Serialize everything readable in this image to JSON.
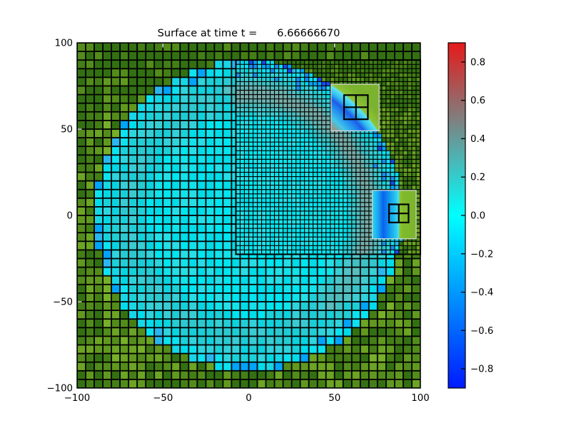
{
  "chart_data": {
    "type": "heatmap",
    "title": "Surface at time t =      6.66666670",
    "time_value": "6.66666670",
    "axes": {
      "xlim": [
        -100,
        100
      ],
      "ylim": [
        -100,
        100
      ],
      "xticks": [
        -100,
        -50,
        0,
        50,
        100
      ],
      "xtick_labels": [
        "−100",
        "−50",
        "0",
        "50",
        "100"
      ],
      "yticks": [
        100,
        50,
        0,
        -50,
        -100
      ],
      "ytick_labels": [
        "100",
        "50",
        "0",
        "−50",
        "−100"
      ],
      "aspect": "equal",
      "grid": "AMR mesh lines"
    },
    "colorbar": {
      "position": "right",
      "vmin": -0.9,
      "vmax": 0.9,
      "ticks": [
        0.8,
        0.6,
        0.4,
        0.2,
        0.0,
        -0.2,
        -0.4,
        -0.6,
        -0.8
      ],
      "tick_labels": [
        "0.8",
        "0.6",
        "0.4",
        "0.2",
        "0.0",
        "−0.2",
        "−0.4",
        "−0.6",
        "−0.8"
      ],
      "cmap_stops": [
        [
          0.9,
          "#e61a1a"
        ],
        [
          0.6,
          "#996666"
        ],
        [
          0.3,
          "#4db3b3"
        ],
        [
          0.0,
          "#00ffff"
        ],
        [
          -0.3,
          "#00b3ff"
        ],
        [
          -0.6,
          "#0066ff"
        ],
        [
          -0.9,
          "#001aff"
        ]
      ]
    },
    "mesh": {
      "coarse_cell_size": 5,
      "fine_cell_size": 2.5,
      "fine_region": {
        "x": [
          -7.5,
          100
        ],
        "y": [
          -22.5,
          90
        ]
      },
      "line_color": "#000000"
    },
    "water_circle": {
      "cx": 0,
      "cy": 0,
      "radius": 90
    },
    "field_summary": {
      "ocean_interior_eta": 0.0,
      "wave_crest_eta": 0.45,
      "wave_crest_radius": 70,
      "leading_trough_eta": -0.3,
      "leading_trough_radius": 87,
      "land": "no data (olive green cells)"
    },
    "palettes": {
      "background": "#ffffff",
      "frame": "#000000",
      "land_shades": [
        "#337012",
        "#447f16",
        "#538c1a",
        "#61991e",
        "#6ca423",
        "#76af28"
      ],
      "water_inner": [
        "#00e6f0",
        "#12e2ea",
        "#26dee6",
        "#00dce8"
      ],
      "water_ring_base": [
        "#18d2da",
        "#2cd6de",
        "#00d8e4"
      ],
      "ring_gray": "#8ba39c",
      "ring_teal": "#55b6b8",
      "rim_azure": "#00a4fa",
      "rim_azure2": "#2ab6f0",
      "rim_cyan": [
        "#00dcec",
        "#17d6e6",
        "#0ce2f0"
      ],
      "fine_blue": "#1b49ee",
      "fine_azure": "#1e8cf0",
      "patch_border": "#d9d9d9"
    },
    "patches": [
      {
        "id": "refined-patch-ne",
        "bounds": {
          "x": [
            48,
            76
          ],
          "y": [
            49,
            76
          ]
        },
        "inner_grid": {
          "x": [
            55.5,
            69.4
          ],
          "y": [
            55.7,
            69.7
          ],
          "divisions": 2
        },
        "gradient": {
          "kind": "radial",
          "stops": [
            [
              0.62,
              "#2cc6d4"
            ],
            [
              0.71,
              "#94968a"
            ],
            [
              0.74,
              "#8d9b8e"
            ],
            [
              0.78,
              "#44c6e8"
            ],
            [
              0.83,
              "#2293f0"
            ],
            [
              0.87,
              "#1d5cea"
            ],
            [
              0.9,
              "#2fb9ef"
            ],
            [
              0.935,
              "#5ce4f4"
            ],
            [
              0.945,
              "#8fc437"
            ],
            [
              1,
              "#7cb32e"
            ]
          ]
        }
      },
      {
        "id": "refined-patch-e",
        "bounds": {
          "x": [
            72,
            97.5
          ],
          "y": [
            -13.5,
            14.5
          ]
        },
        "inner_grid": {
          "x": [
            81.7,
            93.1
          ],
          "y": [
            -4.1,
            6.4
          ],
          "divisions": 2
        },
        "gradient": {
          "kind": "linear-x",
          "stops": [
            [
              0,
              "#2ed4ee"
            ],
            [
              0.12,
              "#18acf0"
            ],
            [
              0.25,
              "#0b62ee"
            ],
            [
              0.42,
              "#14a4ee"
            ],
            [
              0.54,
              "#2cc8f0"
            ],
            [
              0.6,
              "#49e0f4"
            ],
            [
              0.625,
              "#8fc437"
            ],
            [
              0.7,
              "#7fbb2a"
            ],
            [
              1,
              "#7cb32e"
            ]
          ]
        }
      }
    ]
  }
}
